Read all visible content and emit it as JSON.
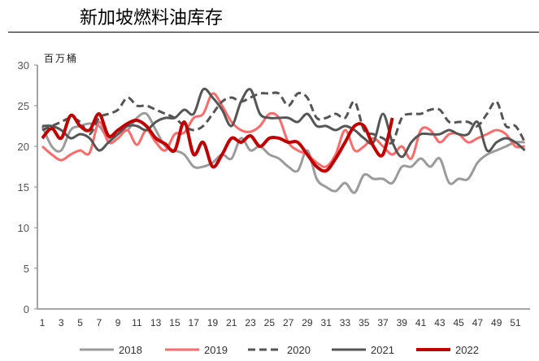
{
  "title": "新加坡燃料油库存",
  "chart_data": {
    "type": "line",
    "title": "新加坡燃料油库存",
    "ylabel": "百万桶",
    "xlabel": "",
    "ylim": [
      0,
      30
    ],
    "yticks": [
      0,
      5,
      10,
      15,
      20,
      25,
      30
    ],
    "xlim": [
      1,
      52
    ],
    "xticks": [
      1,
      3,
      5,
      7,
      9,
      11,
      13,
      15,
      17,
      19,
      21,
      23,
      25,
      27,
      29,
      31,
      33,
      35,
      37,
      39,
      41,
      43,
      45,
      47,
      49,
      51
    ],
    "grid": false,
    "legend": "bottom",
    "series": [
      {
        "name": "2018",
        "color": "#9b9b9b",
        "style": "solid",
        "values": [
          22.5,
          20,
          19.5,
          22,
          22.5,
          22.8,
          22.5,
          21,
          22,
          22,
          23.5,
          24,
          22,
          20,
          19.5,
          19,
          17.5,
          17.5,
          18,
          19,
          18.5,
          21,
          19.5,
          20,
          19,
          18.5,
          17.5,
          17,
          19.5,
          16,
          15,
          14.5,
          15.5,
          14.3,
          16.5,
          16,
          16,
          15.5,
          17.5,
          17.5,
          18.5,
          17.5,
          18.5,
          15.5,
          16,
          16,
          18,
          19,
          19.5,
          20,
          20.5,
          20.5
        ]
      },
      {
        "name": "2019",
        "color": "#ff6b6b",
        "style": "solid",
        "values": [
          20,
          19,
          18.3,
          19,
          19.5,
          19.2,
          23,
          20.5,
          21,
          22,
          20.2,
          22,
          20.5,
          19.5,
          21.5,
          21.7,
          23.5,
          24,
          26.5,
          25,
          23,
          22,
          21.8,
          22.5,
          24,
          23.5,
          20.5,
          19.5,
          19,
          18,
          17.5,
          19,
          22,
          19.5,
          20,
          21,
          20,
          19,
          20,
          18.5,
          22,
          22,
          20.5,
          21.5,
          21.5,
          20.5,
          21,
          21.5,
          22,
          21.5,
          20,
          20
        ]
      },
      {
        "name": "2020",
        "color": "#555555",
        "style": "dashed",
        "values": [
          22,
          22.5,
          23,
          23.5,
          23,
          21.5,
          23.5,
          24,
          24.5,
          26,
          25,
          25,
          24.5,
          24,
          23.5,
          22.5,
          22,
          22.5,
          24,
          25.5,
          26,
          25.5,
          26,
          26.5,
          26.5,
          26.5,
          25,
          26.5,
          26,
          23.5,
          23.5,
          24,
          23.5,
          25.5,
          22,
          21.5,
          21,
          20.5,
          23.5,
          24,
          24,
          24.5,
          24.5,
          23,
          23,
          23,
          22.5,
          24,
          25.5,
          22.5,
          22.5,
          20.5
        ]
      },
      {
        "name": "2021",
        "color": "#555555",
        "style": "solid",
        "values": [
          22.5,
          22.5,
          22,
          21,
          21.5,
          21,
          19.5,
          20.5,
          21.5,
          22.5,
          22.5,
          22,
          23,
          23.5,
          23.5,
          24.5,
          24,
          27,
          26,
          24.5,
          22.5,
          25.5,
          27,
          24,
          23.5,
          23.5,
          23.5,
          23,
          24,
          22.5,
          22.5,
          22,
          22.5,
          22,
          21,
          20.5,
          24,
          20.5,
          18.7,
          20.5,
          21.5,
          21.5,
          21.5,
          22,
          21.5,
          21.5,
          23,
          19.5,
          20.5,
          21,
          20.5,
          19.5
        ]
      },
      {
        "name": "2022",
        "color": "#c00000",
        "style": "bold",
        "values": [
          21,
          22.2,
          21,
          23.8,
          22.5,
          22,
          24,
          21.3,
          22,
          22.8,
          23.2,
          22.5,
          21,
          20.3,
          19.5,
          23,
          19,
          20.5,
          17.5,
          19,
          21,
          20.5,
          21.3,
          20,
          21,
          21,
          20.5,
          20.5,
          19,
          17.5,
          17,
          18.5,
          20.5,
          22.5,
          22.5,
          20,
          19,
          23.5
        ]
      }
    ]
  }
}
